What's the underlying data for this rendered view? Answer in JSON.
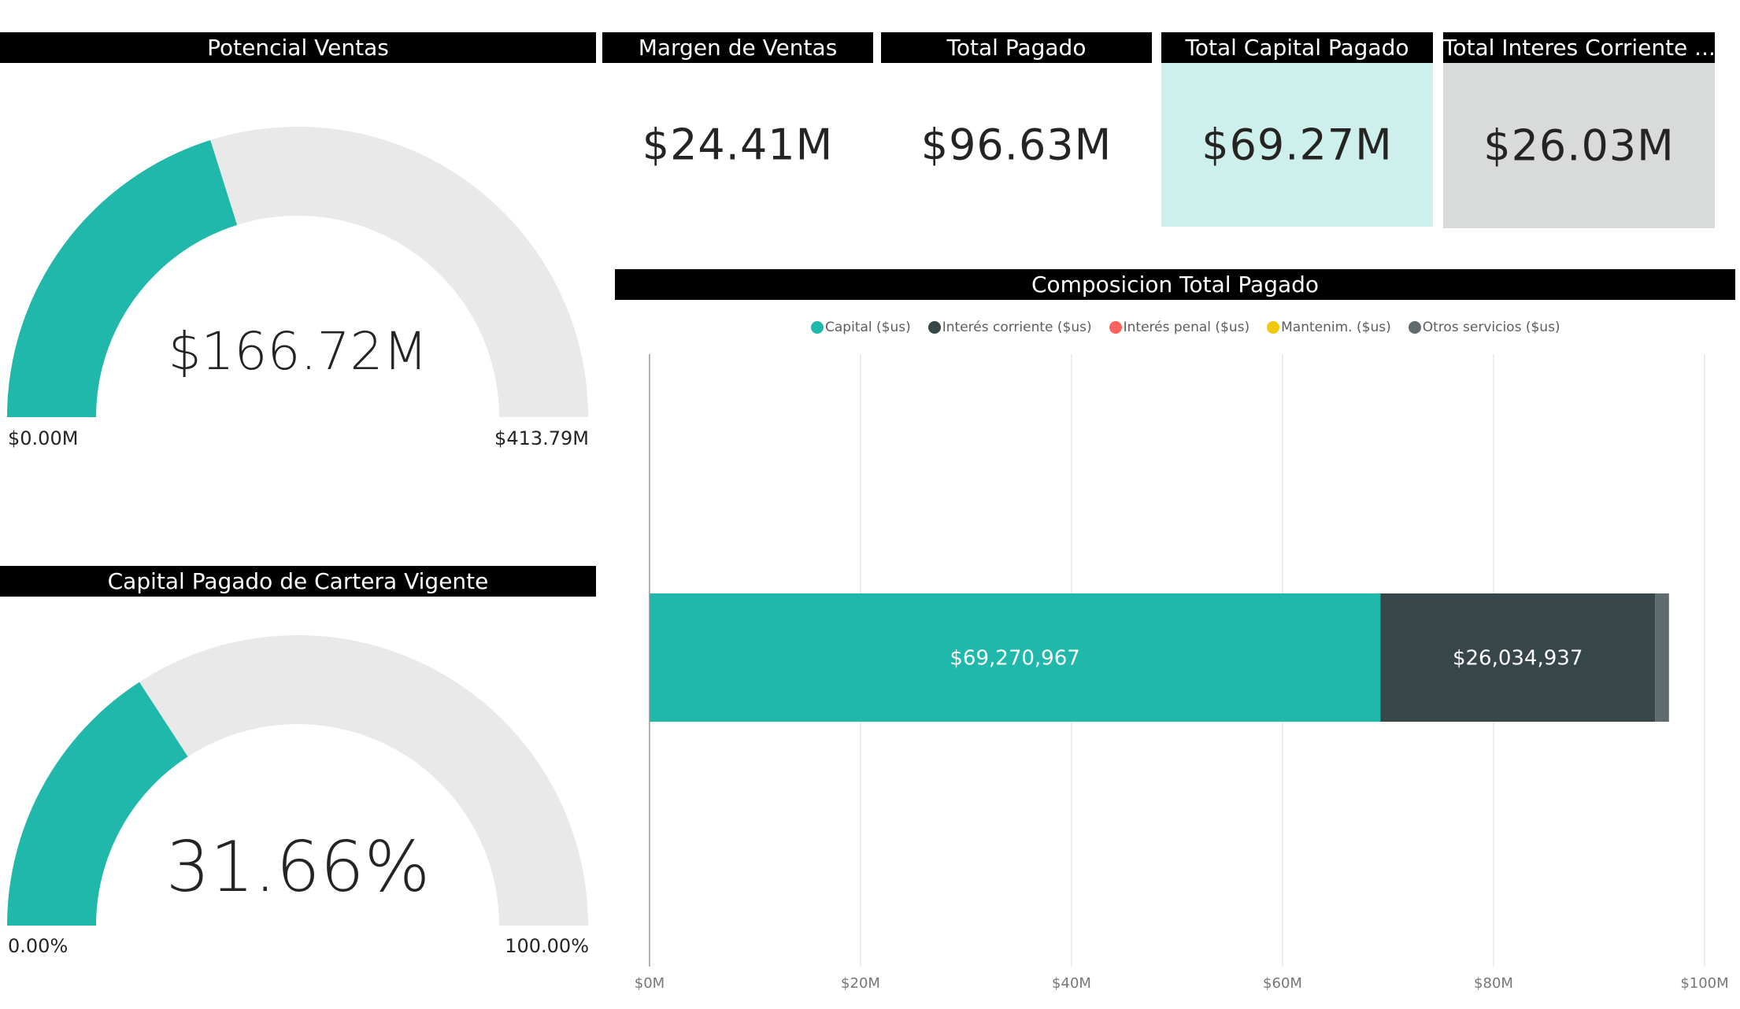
{
  "cards": {
    "potencial_ventas": {
      "title": "Potencial Ventas"
    },
    "margen_ventas": {
      "title": "Margen de Ventas",
      "value": "$24.41M"
    },
    "total_pagado": {
      "title": "Total Pagado",
      "value": "$96.63M"
    },
    "total_capital_pagado": {
      "title": "Total Capital Pagado",
      "value": "$69.27M",
      "bg": "#cdf0ed"
    },
    "total_interes_corriente": {
      "title": "Total Interes Corriente ...",
      "value": "$26.03M",
      "bg": "#d9dbdb"
    }
  },
  "gauges": [
    {
      "title": "Potencial Ventas",
      "center_label": "$166.72M",
      "min_label": "$0.00M",
      "max_label": "$413.79M",
      "value": 166.72,
      "min": 0,
      "max": 413.79,
      "fill_color": "#1fb8aa",
      "track_color": "#e9e9e9"
    },
    {
      "title": "Capital Pagado de Cartera Vigente",
      "center_label": "31.66%",
      "min_label": "0.00%",
      "max_label": "100.00%",
      "value": 31.66,
      "min": 0,
      "max": 100,
      "fill_color": "#1fb8aa",
      "track_color": "#e9e9e9"
    }
  ],
  "chart_data": {
    "type": "bar",
    "orientation": "horizontal",
    "stacked": true,
    "title": "Composicion Total Pagado",
    "xlim": [
      0,
      100000000
    ],
    "x_ticks": [
      0,
      20000000,
      40000000,
      60000000,
      80000000,
      100000000
    ],
    "x_tick_labels": [
      "$0M",
      "$20M",
      "$40M",
      "$60M",
      "$80M",
      "$100M"
    ],
    "grid": true,
    "legend_position": "top-center",
    "series": [
      {
        "name": "Capital ($us)",
        "values": [
          69270967
        ],
        "label": "$69,270,967",
        "color": "#1fb8aa"
      },
      {
        "name": "Interés corriente ($us)",
        "values": [
          26034937
        ],
        "label": "$26,034,937",
        "color": "#374649"
      },
      {
        "name": "Interés penal ($us)",
        "values": [
          0
        ],
        "label": "",
        "color": "#fd625e"
      },
      {
        "name": "Mantenim. ($us)",
        "values": [
          0
        ],
        "label": "",
        "color": "#f2c80f"
      },
      {
        "name": "Otros servicios ($us)",
        "values": [
          1320000
        ],
        "label": "",
        "color": "#5f6b6d"
      }
    ]
  }
}
